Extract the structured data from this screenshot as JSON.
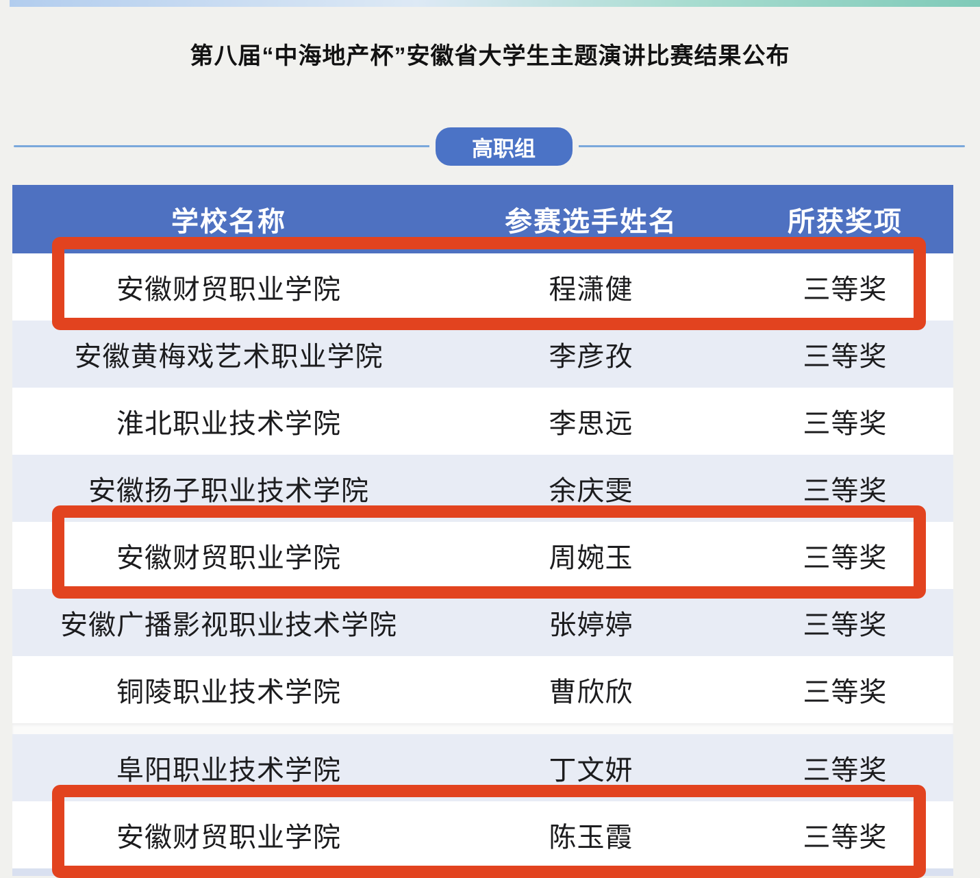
{
  "page": {
    "title": "第八届“中海地产杯”安徽省大学生主题演讲比赛结果公布",
    "section_badge": "高职组"
  },
  "table": {
    "headers": {
      "school": "学校名称",
      "contestant": "参赛选手姓名",
      "award": "所获奖项"
    },
    "rows": [
      {
        "school": "安徽财贸职业学院",
        "contestant": "程潇健",
        "award": "三等奖",
        "highlighted": true,
        "gap_after": false
      },
      {
        "school": "安徽黄梅戏艺术职业学院",
        "contestant": "李彦孜",
        "award": "三等奖",
        "highlighted": false,
        "gap_after": false
      },
      {
        "school": "淮北职业技术学院",
        "contestant": "李思远",
        "award": "三等奖",
        "highlighted": false,
        "gap_after": false
      },
      {
        "school": "安徽扬子职业技术学院",
        "contestant": "余庆雯",
        "award": "三等奖",
        "highlighted": false,
        "gap_after": false
      },
      {
        "school": "安徽财贸职业学院",
        "contestant": "周婉玉",
        "award": "三等奖",
        "highlighted": true,
        "gap_after": false
      },
      {
        "school": "安徽广播影视职业技术学院",
        "contestant": "张婷婷",
        "award": "三等奖",
        "highlighted": false,
        "gap_after": false
      },
      {
        "school": "铜陵职业技术学院",
        "contestant": "曹欣欣",
        "award": "三等奖",
        "highlighted": false,
        "gap_after": true
      },
      {
        "school": "阜阳职业技术学院",
        "contestant": "丁文妍",
        "award": "三等奖",
        "highlighted": false,
        "gap_after": false
      },
      {
        "school": "安徽财贸职业学院",
        "contestant": "陈玉霞",
        "award": "三等奖",
        "highlighted": true,
        "gap_after": false
      }
    ]
  },
  "colors": {
    "header_bg": "#4e71c1",
    "badge_bg": "#4b73c6",
    "row_alt": "#e8ecf5",
    "highlight_border": "#e2431f",
    "divider_line": "#7aa8db",
    "topbar_left": "#b2cdee",
    "topbar_right": "#7fcab8",
    "bottom_strip": "#d9e0f0"
  }
}
